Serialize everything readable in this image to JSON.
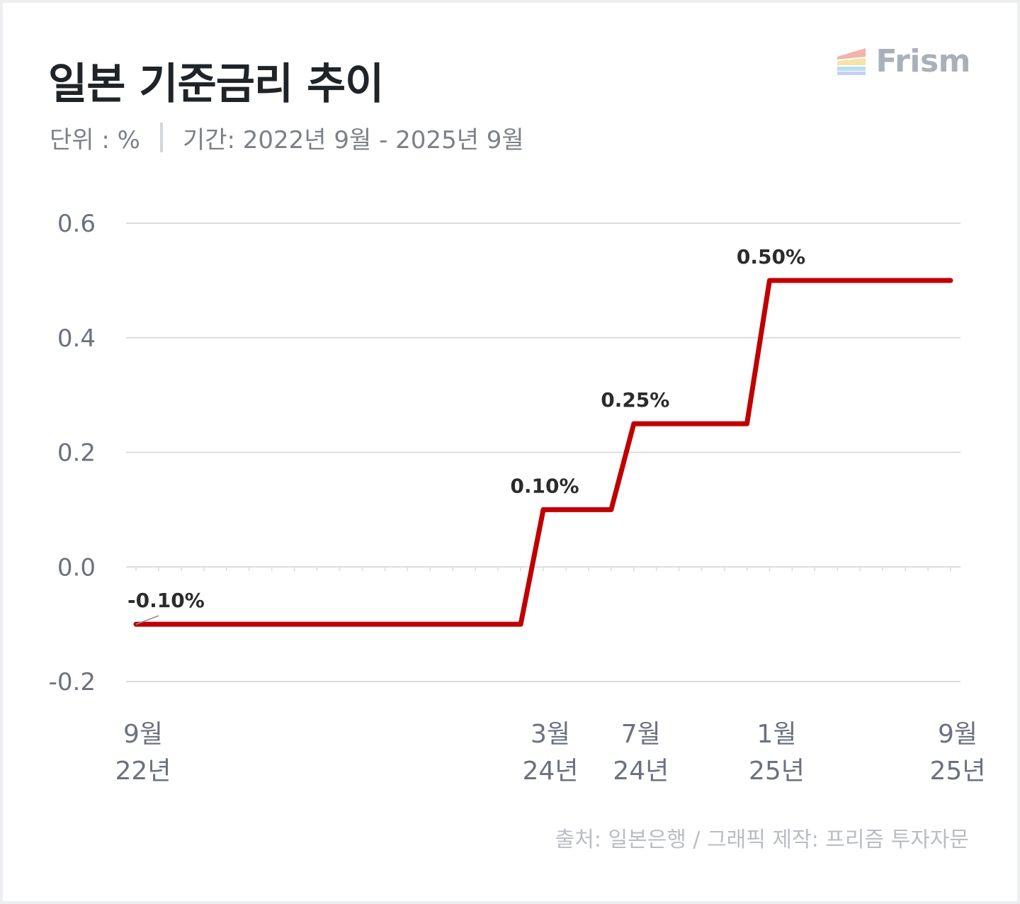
{
  "header": {
    "title": "일본 기준금리 추이",
    "unit": "단위 : %",
    "period": "기간: 2022년 9월 - 2025년 9월"
  },
  "brand": {
    "name": "Frism",
    "icon": "frism-logo-icon"
  },
  "footer": {
    "source": "출처: 일본은행 / 그래픽 제작: 프리즘 투자자문"
  },
  "colors": {
    "line": "#c00000",
    "grid": "#d9dce0",
    "axis_text": "#6b7180",
    "label": "#2b2b2b"
  },
  "chart_data": {
    "type": "line",
    "step": true,
    "title": "일본 기준금리 추이",
    "xlabel": "",
    "ylabel": "",
    "ylim": [
      -0.2,
      0.6
    ],
    "yticks": [
      -0.2,
      0.0,
      0.2,
      0.4,
      0.6
    ],
    "ytick_labels": [
      "-0.2",
      "0.0",
      "0.2",
      "0.4",
      "0.6"
    ],
    "grid": true,
    "xlim": [
      "2022-09",
      "2025-09"
    ],
    "x_ticks": [
      {
        "x": "2022-09",
        "month": "9월",
        "year": "22년"
      },
      {
        "x": "2024-03",
        "month": "3월",
        "year": "24년"
      },
      {
        "x": "2024-07",
        "month": "7월",
        "year": "24년"
      },
      {
        "x": "2025-01",
        "month": "1월",
        "year": "25년"
      },
      {
        "x": "2025-09",
        "month": "9월",
        "year": "25년"
      }
    ],
    "series": [
      {
        "color": "#c00000",
        "points": [
          {
            "x": "2022-09",
            "y": -0.1
          },
          {
            "x": "2024-02",
            "y": -0.1
          },
          {
            "x": "2024-03",
            "y": 0.1
          },
          {
            "x": "2024-06",
            "y": 0.1
          },
          {
            "x": "2024-07",
            "y": 0.25
          },
          {
            "x": "2024-12",
            "y": 0.25
          },
          {
            "x": "2025-01",
            "y": 0.5
          },
          {
            "x": "2025-09",
            "y": 0.5
          }
        ]
      }
    ],
    "annotations": [
      {
        "x": "2022-09",
        "y": -0.1,
        "text": "-0.10%"
      },
      {
        "x": "2024-03",
        "y": 0.1,
        "text": "0.10%"
      },
      {
        "x": "2024-07",
        "y": 0.25,
        "text": "0.25%"
      },
      {
        "x": "2025-01",
        "y": 0.5,
        "text": "0.50%"
      }
    ]
  }
}
